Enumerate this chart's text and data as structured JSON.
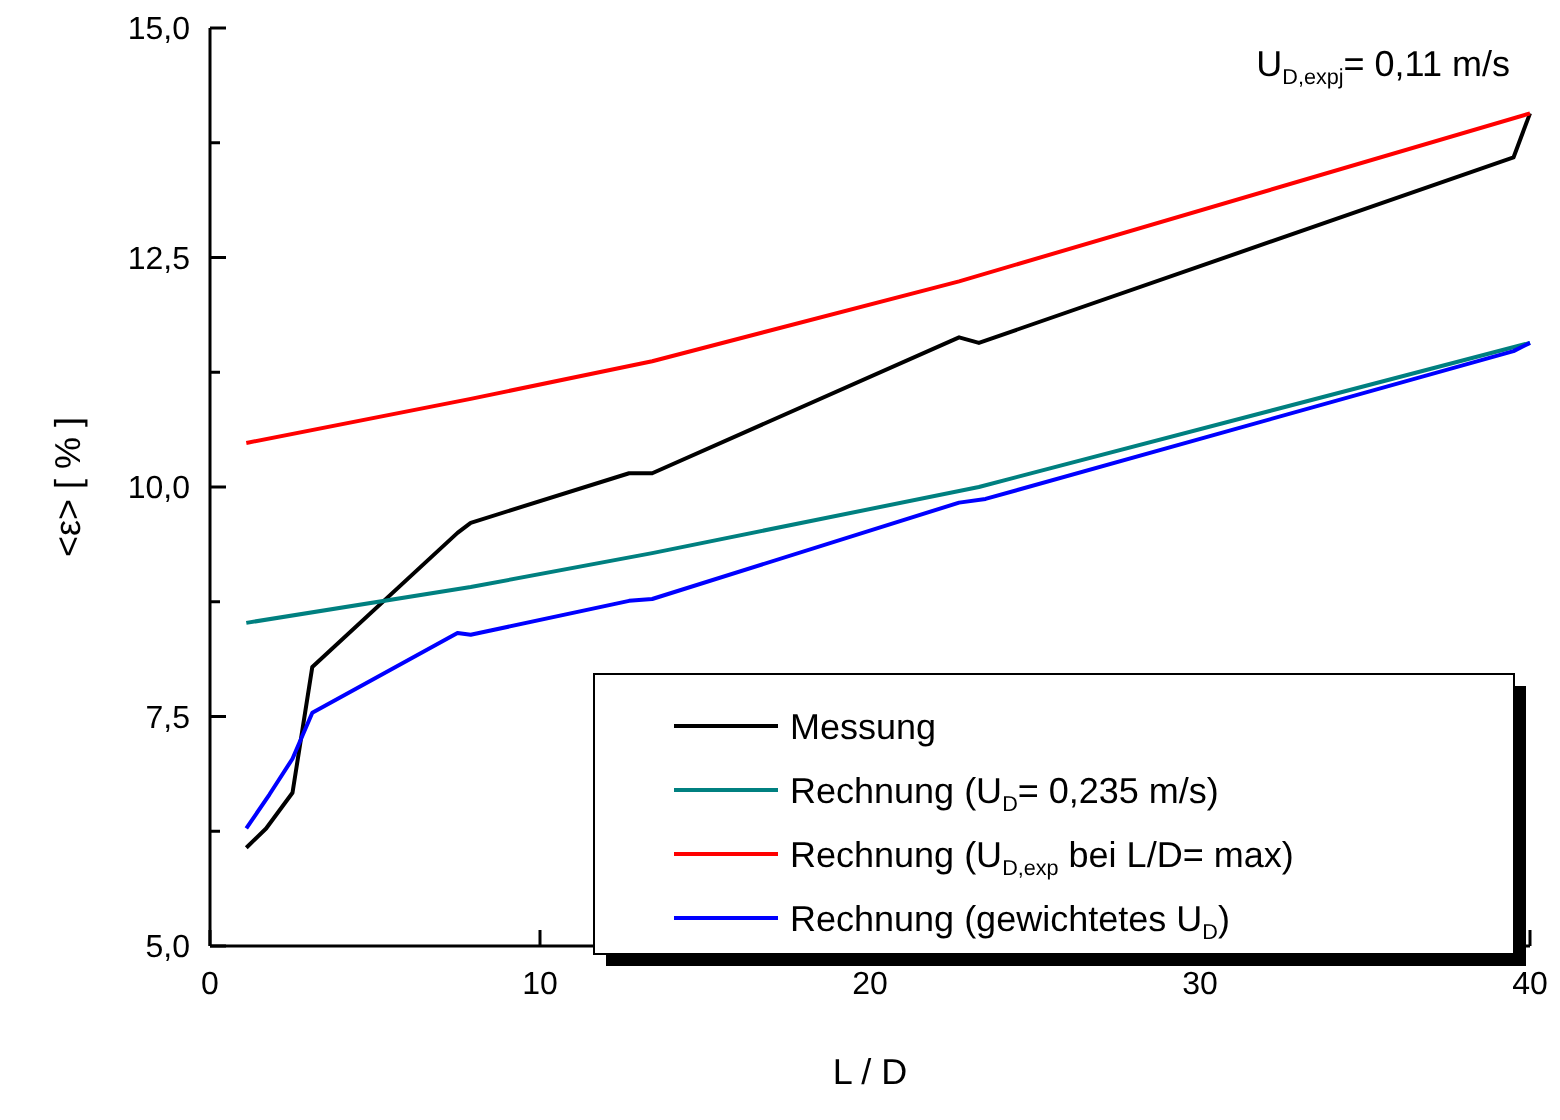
{
  "chart_data": {
    "type": "line",
    "xlabel": "L / D",
    "ylabel": "<ε> [ % ]",
    "xlim": [
      0,
      40
    ],
    "ylim": [
      5,
      15
    ],
    "xticks": [
      0,
      10,
      20,
      30,
      40
    ],
    "yticks": [
      {
        "value": 5,
        "label": "5,0"
      },
      {
        "value": 6.25,
        "label": null
      },
      {
        "value": 7.5,
        "label": "7,5"
      },
      {
        "value": 8.75,
        "label": null
      },
      {
        "value": 10,
        "label": "10,0"
      },
      {
        "value": 11.25,
        "label": null
      },
      {
        "value": 12.5,
        "label": "12,5"
      },
      {
        "value": 13.75,
        "label": null
      },
      {
        "value": 15,
        "label": "15,0"
      }
    ],
    "legend": "bottom right",
    "grid": false,
    "marker": "none",
    "line_style": "solid",
    "annotations": [
      "U$_{D,expj}$= 0,11 m/s"
    ],
    "series": [
      {
        "name": "Messung",
        "color": "#000000",
        "x": [
          1.1,
          1.7,
          2.5,
          3.1,
          7.5,
          7.9,
          12.7,
          13.4,
          22.7,
          23.3,
          39.5,
          40
        ],
        "values": [
          6.07,
          6.28,
          6.67,
          8.04,
          9.5,
          9.61,
          10.15,
          10.15,
          11.63,
          11.57,
          13.59,
          14.07
        ]
      },
      {
        "name": "Rechnung (U$_{D}$= 0,235 m/s)",
        "color": "#008080",
        "x": [
          1.1,
          7.9,
          13.4,
          23.3,
          40
        ],
        "values": [
          8.52,
          8.91,
          9.28,
          10.0,
          11.57
        ]
      },
      {
        "name": "Rechnung (U$_{D,exp}$ bei L/D= max)",
        "color": "#ff0000",
        "x": [
          1.1,
          7.9,
          13.4,
          22.7,
          40
        ],
        "values": [
          10.48,
          10.96,
          11.37,
          12.24,
          14.07
        ]
      },
      {
        "name": "Rechnung (gewichtetes U$_{D}$)",
        "color": "#0000ff",
        "x": [
          1.1,
          1.8,
          2.5,
          3.1,
          7.5,
          7.9,
          12.7,
          13.4,
          22.7,
          23.5,
          39.5,
          40
        ],
        "values": [
          6.28,
          6.65,
          7.04,
          7.54,
          8.41,
          8.39,
          8.76,
          8.78,
          9.83,
          9.87,
          11.48,
          11.57
        ]
      }
    ]
  }
}
